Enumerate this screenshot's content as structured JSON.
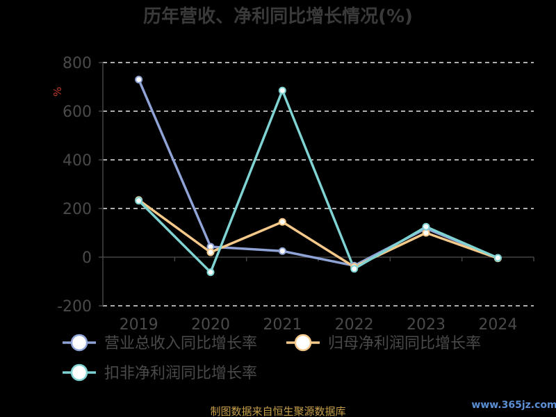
{
  "chart_data": {
    "type": "line",
    "title": "历年营收、净利同比增长情况(%)",
    "ylabel": "%",
    "categories": [
      "2019",
      "2020",
      "2021",
      "2022",
      "2023",
      "2024"
    ],
    "ylim": [
      -200,
      800
    ],
    "yticks": [
      -200,
      0,
      200,
      400,
      600,
      800
    ],
    "grid": true,
    "legend_position": "bottom",
    "series": [
      {
        "name": "营业总收入同比增长率",
        "color": "#8fa3d6",
        "values": [
          730,
          43,
          25,
          -35,
          118,
          -3
        ]
      },
      {
        "name": "归母净利润同比增长率",
        "color": "#f5c98a",
        "values": [
          235,
          20,
          145,
          -40,
          100,
          -5
        ]
      },
      {
        "name": "扣非净利润同比增长率",
        "color": "#7fd3d3",
        "values": [
          232,
          -62,
          685,
          -48,
          125,
          -3
        ]
      }
    ]
  },
  "footer": {
    "source": "制图数据来自恒生聚源数据库",
    "watermark": "www.365jz.com"
  }
}
